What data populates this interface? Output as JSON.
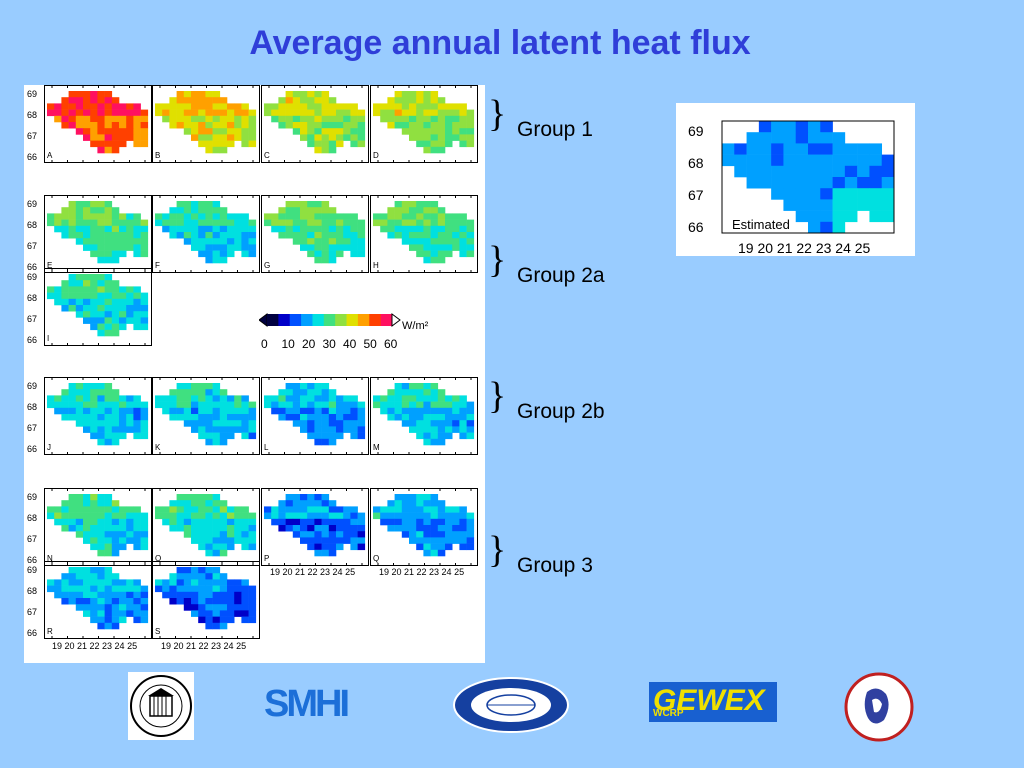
{
  "slide": {
    "title": "Average annual latent heat flux"
  },
  "panels": [
    {
      "letter": "A",
      "row": 0,
      "col": 0,
      "level": 0.85
    },
    {
      "letter": "B",
      "row": 0,
      "col": 1,
      "level": 0.66
    },
    {
      "letter": "C",
      "row": 0,
      "col": 2,
      "level": 0.58
    },
    {
      "letter": "D",
      "row": 0,
      "col": 3,
      "level": 0.57
    },
    {
      "letter": "E",
      "row": 1,
      "col": 0,
      "level": 0.47
    },
    {
      "letter": "F",
      "row": 1,
      "col": 1,
      "level": 0.38
    },
    {
      "letter": "G",
      "row": 1,
      "col": 2,
      "level": 0.48
    },
    {
      "letter": "H",
      "row": 1,
      "col": 3,
      "level": 0.45
    },
    {
      "letter": "I",
      "row": 2,
      "col": 0,
      "level": 0.4
    },
    {
      "letter": "J",
      "row": 3,
      "col": 0,
      "level": 0.36
    },
    {
      "letter": "K",
      "row": 3,
      "col": 1,
      "level": 0.35
    },
    {
      "letter": "L",
      "row": 3,
      "col": 2,
      "level": 0.3
    },
    {
      "letter": "M",
      "row": 3,
      "col": 3,
      "level": 0.35
    },
    {
      "letter": "N",
      "row": 4,
      "col": 0,
      "level": 0.4
    },
    {
      "letter": "O",
      "row": 4,
      "col": 1,
      "level": 0.4
    },
    {
      "letter": "P",
      "row": 4,
      "col": 2,
      "level": 0.25
    },
    {
      "letter": "Q",
      "row": 4,
      "col": 3,
      "level": 0.3
    },
    {
      "letter": "R",
      "row": 5,
      "col": 0,
      "level": 0.3
    },
    {
      "letter": "S",
      "row": 5,
      "col": 1,
      "level": 0.22
    }
  ],
  "lat_ticks": [
    "69",
    "68",
    "67",
    "66"
  ],
  "lon_ticks": "19 20 21 22 23 24 25",
  "colorbar": {
    "unit": "W/m²",
    "ticks": [
      "0",
      "10",
      "20",
      "30",
      "40",
      "50",
      "60"
    ],
    "colors": [
      "#000040",
      "#0000c8",
      "#0050ff",
      "#00a0ff",
      "#00e0e0",
      "#40e080",
      "#90e040",
      "#e0e000",
      "#ffa000",
      "#ff4000",
      "#ff1060"
    ]
  },
  "estimated": {
    "label": "Estimated",
    "level": 0.3
  },
  "groups": [
    {
      "label": "Group 1"
    },
    {
      "label": "Group 2a"
    },
    {
      "label": "Group 2b"
    },
    {
      "label": "Group 3"
    }
  ],
  "logos": [
    "university-of-washington-seal",
    "smhi-logo",
    "acsys-logo",
    "gewex-logo",
    "baltex-logo"
  ],
  "logo_text": {
    "smhi": "SMHI",
    "gewex": "GEWEX",
    "wcrp": "WCRP"
  }
}
